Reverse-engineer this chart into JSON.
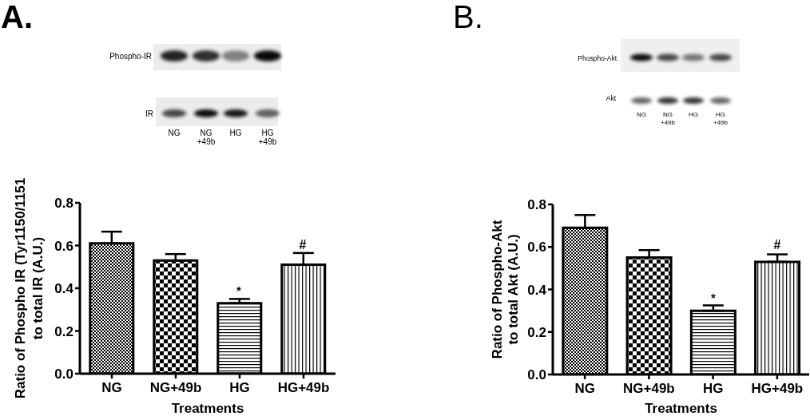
{
  "chart_data": [
    {
      "type": "bar",
      "title": "A.",
      "xlabel": "Treatments",
      "ylabel": "Ratio of Phospho IR (Tyr1150/1151\nto total IR (A.U.)",
      "categories": [
        "NG",
        "NG+49b",
        "HG",
        "HG+49b"
      ],
      "values": [
        0.61,
        0.53,
        0.33,
        0.51
      ],
      "errors": [
        0.055,
        0.03,
        0.02,
        0.055
      ],
      "colors": [
        "#000000",
        "#000000",
        "#000000",
        "#000000"
      ],
      "ylim": [
        0,
        0.8
      ],
      "yticks": [
        {
          "value": 0,
          "label": "0.0"
        },
        0.2,
        0.4,
        0.6,
        0.8
      ],
      "annotations": [
        "Phospho-IR",
        "IR",
        "NG",
        "NG +49b",
        "HG",
        "HG +49b",
        "*",
        "#"
      ]
    },
    {
      "type": "bar",
      "title": "B.",
      "xlabel": "Treatments",
      "ylabel": "Ratio of Phospho-Akt\nto total Akt (A.U.)",
      "categories": [
        "NG",
        "NG+49b",
        "HG",
        "HG+49b"
      ],
      "values": [
        0.69,
        0.55,
        0.3,
        0.53
      ],
      "errors": [
        0.06,
        0.035,
        0.025,
        0.035
      ],
      "colors": [
        "#000000",
        "#000000",
        "#000000",
        "#000000"
      ],
      "ylim": [
        0,
        0.8
      ],
      "yticks": [
        {
          "value": 0,
          "label": "0.0"
        },
        0.2,
        0.4,
        0.6,
        0.8
      ],
      "annotations": [
        "Phospho-Akt",
        "Akt",
        "NG",
        "NG +49b",
        "HG",
        "HG +49b",
        "*",
        "#"
      ]
    }
  ]
}
